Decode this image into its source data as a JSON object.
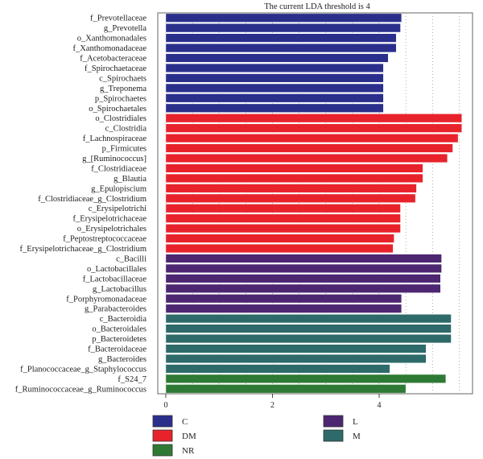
{
  "chart_data": {
    "type": "bar",
    "orientation": "horizontal",
    "title": "The current LDA threshold is 4",
    "xlabel": "",
    "ylabel": "",
    "xlim": [
      -0.15,
      5.75
    ],
    "xticks": [
      0,
      2,
      4
    ],
    "grid": "vertical dotted",
    "legend_position": "bottom",
    "groups": [
      {
        "name": "C",
        "color": "#2b2f8c"
      },
      {
        "name": "DM",
        "color": "#e8222b"
      },
      {
        "name": "NR",
        "color": "#2e7a34"
      },
      {
        "name": "L",
        "color": "#4d2672"
      },
      {
        "name": "M",
        "color": "#2e6a6a"
      }
    ],
    "bars": [
      {
        "label": "f_Prevotellaceae",
        "value": 4.42,
        "group": "C"
      },
      {
        "label": "g_Prevotella",
        "value": 4.4,
        "group": "C"
      },
      {
        "label": "o_Xanthomonadales",
        "value": 4.32,
        "group": "C"
      },
      {
        "label": "f_Xanthomonadaceae",
        "value": 4.32,
        "group": "C"
      },
      {
        "label": "f_Acetobacteraceae",
        "value": 4.17,
        "group": "C"
      },
      {
        "label": "f_Spirochaetaceae",
        "value": 4.08,
        "group": "C"
      },
      {
        "label": "c_Spirochaets",
        "value": 4.08,
        "group": "C"
      },
      {
        "label": "g_Treponema",
        "value": 4.08,
        "group": "C"
      },
      {
        "label": "p_Spirochaetes",
        "value": 4.08,
        "group": "C"
      },
      {
        "label": "o_Spirochaetales",
        "value": 4.08,
        "group": "C"
      },
      {
        "label": "o_Clostridiales",
        "value": 5.55,
        "group": "DM"
      },
      {
        "label": "c_Clostridia",
        "value": 5.55,
        "group": "DM"
      },
      {
        "label": "f_Lachnospiraceae",
        "value": 5.48,
        "group": "DM"
      },
      {
        "label": "p_Firmicutes",
        "value": 5.38,
        "group": "DM"
      },
      {
        "label": "g_[Ruminococcus]",
        "value": 5.28,
        "group": "DM"
      },
      {
        "label": "f_Clostridiaceae",
        "value": 4.82,
        "group": "DM"
      },
      {
        "label": "g_Blautia",
        "value": 4.82,
        "group": "DM"
      },
      {
        "label": "g_Epulopiscium",
        "value": 4.7,
        "group": "DM"
      },
      {
        "label": "f_Clostridiaceae_g_Clostridium",
        "value": 4.68,
        "group": "DM"
      },
      {
        "label": "c_Erysipelotrichi",
        "value": 4.4,
        "group": "DM"
      },
      {
        "label": "f_Erysipelotrichaceae",
        "value": 4.4,
        "group": "DM"
      },
      {
        "label": "o_Erysipelotrichales",
        "value": 4.4,
        "group": "DM"
      },
      {
        "label": "f_Peptostreptococcaceae",
        "value": 4.28,
        "group": "DM"
      },
      {
        "label": "f_Erysipelotrichaceae_g_Clostridium",
        "value": 4.26,
        "group": "DM"
      },
      {
        "label": "c_Bacilli",
        "value": 5.17,
        "group": "L"
      },
      {
        "label": "o_Lactobacillales",
        "value": 5.17,
        "group": "L"
      },
      {
        "label": "f_Lactobacillaceae",
        "value": 5.15,
        "group": "L"
      },
      {
        "label": "g_Lactobacillus",
        "value": 5.15,
        "group": "L"
      },
      {
        "label": "f_Porphyromonadaceae",
        "value": 4.42,
        "group": "L"
      },
      {
        "label": "g_Parabacteroides",
        "value": 4.42,
        "group": "L"
      },
      {
        "label": "c_Bacteroidia",
        "value": 5.35,
        "group": "M"
      },
      {
        "label": "o_Bacteroidales",
        "value": 5.35,
        "group": "M"
      },
      {
        "label": "p_Bacteroidetes",
        "value": 5.35,
        "group": "M"
      },
      {
        "label": "f_Bacteroidaceae",
        "value": 4.88,
        "group": "M"
      },
      {
        "label": "g_Bacteroides",
        "value": 4.88,
        "group": "M"
      },
      {
        "label": "f_Planococcaceae_g_Staphylococcus",
        "value": 4.2,
        "group": "M"
      },
      {
        "label": "f_S24_7",
        "value": 5.25,
        "group": "NR"
      },
      {
        "label": "f_Ruminococcaceae_g_Ruminococcus",
        "value": 4.5,
        "group": "NR"
      }
    ]
  }
}
